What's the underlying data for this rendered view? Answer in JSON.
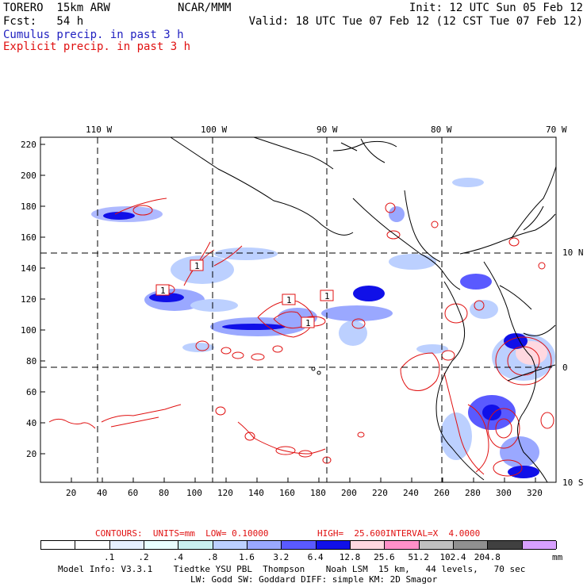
{
  "header": {
    "model_name": "TORERO  15km ARW",
    "org": "NCAR/MMM",
    "init": "Init: 12 UTC Sun 05 Feb 12",
    "fcst": "Fcst:   54 h",
    "valid": "Valid: 18 UTC Tue 07 Feb 12 (12 CST Tue 07 Feb 12)",
    "legend_cumulus": "Cumulus precip. in past 3 h",
    "legend_explicit": "Explicit precip. in past 3 h"
  },
  "axes": {
    "lon_labels": [
      "110 W",
      "100 W",
      "90 W",
      "80 W",
      "70 W"
    ],
    "lat_labels": [
      "10 N",
      "0",
      "10 S"
    ],
    "y_ticks": [
      "220",
      "200",
      "180",
      "160",
      "140",
      "120",
      "100",
      "80",
      "60",
      "40",
      "20"
    ],
    "x_ticks": [
      "20",
      "40",
      "60",
      "80",
      "100",
      "120",
      "140",
      "160",
      "180",
      "200",
      "220",
      "240",
      "260",
      "280",
      "300",
      "320"
    ]
  },
  "contour_labels": [
    "1",
    "1",
    "1",
    "1",
    "1"
  ],
  "contours_line": {
    "label": "CONTOURS:  UNITS=mm  LOW= 0.10000",
    "high": "HIGH=  25.600",
    "interval": "INTERVAL=X  4.0000"
  },
  "colorbar": {
    "labels": [
      ".1",
      ".2",
      ".4",
      ".8",
      "1.6",
      "3.2",
      "6.4",
      "12.8",
      "25.6",
      "51.2",
      "102.4",
      "204.8"
    ],
    "unit": "mm",
    "colors": [
      "#ffffff",
      "#ffffff",
      "#e6f0ff",
      "#e8ffff",
      "#c8f0f0",
      "#bcd0ff",
      "#9aa8ff",
      "#5a5aff",
      "#1010e8",
      "#ffd8e0",
      "#ff90c8",
      "#c0c0c0",
      "#909090",
      "#404040",
      "#d8a0ff"
    ]
  },
  "footer": {
    "line1": "Model Info: V3.3.1    Tiedtke YSU PBL  Thompson    Noah LSM  15 km,   44 levels,   70 sec",
    "line2": "LW: Godd SW: Goddard DIFF: simple KM: 2D Smagor"
  }
}
